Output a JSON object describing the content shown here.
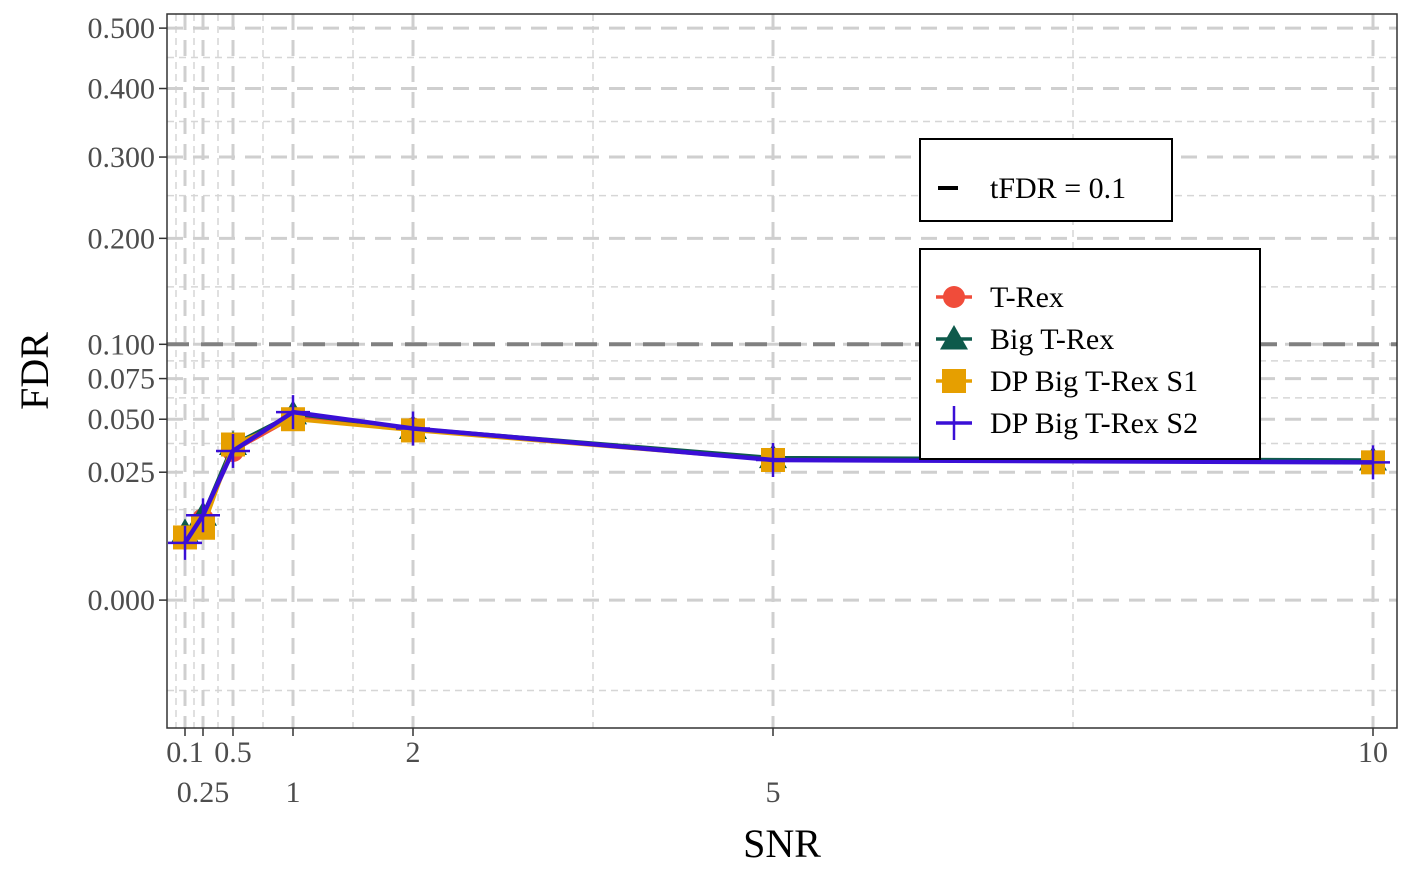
{
  "chart_data": {
    "type": "line",
    "xlabel": "SNR",
    "ylabel": "FDR",
    "x": [
      0.1,
      0.25,
      0.5,
      1,
      2,
      5,
      10
    ],
    "x_ticks": [
      {
        "value": 0.1,
        "label": "0.1",
        "row": 1
      },
      {
        "value": 0.25,
        "label": "0.25",
        "row": 2
      },
      {
        "value": 0.5,
        "label": "0.5",
        "row": 1
      },
      {
        "value": 1,
        "label": "1",
        "row": 2
      },
      {
        "value": 2,
        "label": "2",
        "row": 1
      },
      {
        "value": 5,
        "label": "5",
        "row": 2
      },
      {
        "value": 10,
        "label": "10",
        "row": 1
      }
    ],
    "y_ticks": [
      {
        "value": 0,
        "label": "0.000"
      },
      {
        "value": 0.025,
        "label": "0.025"
      },
      {
        "value": 0.05,
        "label": "0.050"
      },
      {
        "value": 0.075,
        "label": "0.075"
      },
      {
        "value": 0.1,
        "label": "0.100"
      },
      {
        "value": 0.2,
        "label": "0.200"
      },
      {
        "value": 0.3,
        "label": "0.300"
      },
      {
        "value": 0.4,
        "label": "0.400"
      },
      {
        "value": 0.5,
        "label": "0.500"
      }
    ],
    "xlim": [
      -0.05,
      10.2
    ],
    "ylim": [
      -0.025,
      0.525
    ],
    "y_scale": "square-root",
    "grid": true,
    "reference_line": {
      "y": 0.1,
      "label": "tFDR = 0.1",
      "color": "#808080"
    },
    "series": [
      {
        "name": "T-Rex",
        "marker": "circle",
        "color": "#F04C3A",
        "values": [
          0.006,
          0.01,
          0.034,
          0.051,
          0.045,
          0.03,
          0.029
        ]
      },
      {
        "name": "Big T-Rex",
        "marker": "triangle",
        "color": "#0E5A4B",
        "values": [
          0.007,
          0.011,
          0.037,
          0.053,
          0.045,
          0.031,
          0.03
        ]
      },
      {
        "name": "DP Big T-Rex S1",
        "marker": "square",
        "color": "#E69F00",
        "values": [
          0.006,
          0.008,
          0.037,
          0.05,
          0.044,
          0.03,
          0.029
        ]
      },
      {
        "name": "DP Big T-Rex S2",
        "marker": "plus",
        "color": "#3A0FD6",
        "values": [
          0.005,
          0.011,
          0.034,
          0.054,
          0.045,
          0.03,
          0.029
        ]
      }
    ],
    "legend_position": "top-right"
  }
}
